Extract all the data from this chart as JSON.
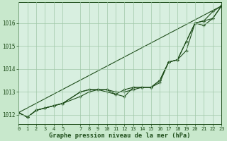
{
  "background_color": "#c8e8cc",
  "plot_bg_color": "#d8efe0",
  "grid_color": "#a0c8a8",
  "line_color": "#1e4d1a",
  "xlabel": "Graphe pression niveau de la mer (hPa)",
  "xlim": [
    0,
    23
  ],
  "ylim": [
    1011.6,
    1016.9
  ],
  "yticks": [
    1012,
    1013,
    1014,
    1015,
    1016
  ],
  "xticks": [
    0,
    1,
    2,
    3,
    4,
    5,
    7,
    8,
    9,
    10,
    11,
    12,
    13,
    14,
    15,
    16,
    17,
    18,
    19,
    20,
    21,
    22,
    23
  ],
  "line1_x": [
    0,
    1,
    2,
    3,
    4,
    5,
    7,
    8,
    9,
    10,
    11,
    12,
    13,
    14,
    15,
    16,
    17,
    18,
    19,
    20,
    21,
    22,
    23
  ],
  "line1_y": [
    1012.1,
    1011.9,
    1012.2,
    1012.3,
    1012.4,
    1012.5,
    1013.0,
    1013.1,
    1013.1,
    1013.0,
    1012.9,
    1013.1,
    1013.2,
    1013.2,
    1013.2,
    1013.4,
    1014.3,
    1014.4,
    1015.2,
    1016.0,
    1016.1,
    1016.2,
    1016.75
  ],
  "line2_x": [
    0,
    1,
    2,
    3,
    4,
    5,
    7,
    8,
    9,
    10,
    11,
    12,
    13,
    14,
    15,
    16,
    17,
    18,
    19,
    20,
    21,
    22,
    23
  ],
  "line2_y": [
    1012.1,
    1011.9,
    1012.2,
    1012.3,
    1012.4,
    1012.5,
    1013.0,
    1013.1,
    1013.1,
    1013.1,
    1013.0,
    1013.0,
    1013.1,
    1013.2,
    1013.2,
    1013.5,
    1014.3,
    1014.4,
    1015.2,
    1016.0,
    1015.9,
    1016.2,
    1016.75
  ],
  "line3_x": [
    0,
    23
  ],
  "line3_y": [
    1012.1,
    1016.75
  ],
  "line4_x": [
    0,
    1,
    2,
    3,
    4,
    5,
    7,
    8,
    9,
    10,
    11,
    12,
    13,
    14,
    15,
    16,
    17,
    18,
    19,
    20,
    21,
    22,
    23
  ],
  "line4_y": [
    1012.1,
    1011.9,
    1012.2,
    1012.3,
    1012.4,
    1012.5,
    1012.8,
    1013.0,
    1013.1,
    1013.1,
    1012.9,
    1012.8,
    1013.2,
    1013.2,
    1013.2,
    1013.5,
    1014.3,
    1014.4,
    1014.8,
    1016.0,
    1016.1,
    1016.5,
    1016.75
  ]
}
